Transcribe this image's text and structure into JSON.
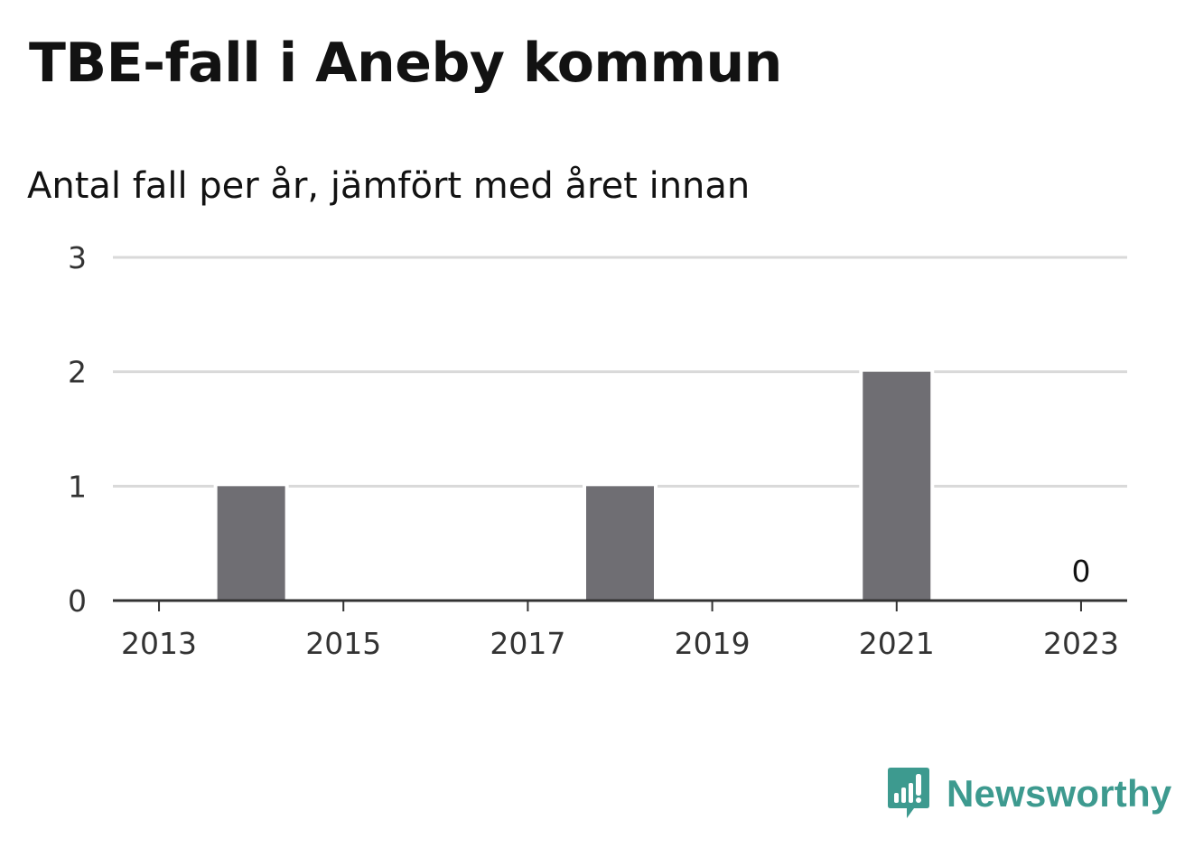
{
  "title": "TBE-fall i Aneby kommun",
  "subtitle": "Antal fall per år, jämfört med året innan",
  "brand": {
    "name": "Newsworthy",
    "color": "#3d9a8f",
    "icon": "newsworthy-bar-chart-speech-bubble-icon"
  },
  "colors": {
    "bar": "#6f6e73",
    "grid": "#d9d9d9",
    "axis": "#333333",
    "text": "#333333"
  },
  "chart_data": {
    "type": "bar",
    "categories": [
      "2013",
      "2014",
      "2015",
      "2016",
      "2017",
      "2018",
      "2019",
      "2020",
      "2021",
      "2022",
      "2023"
    ],
    "values": [
      0,
      1,
      0,
      0,
      0,
      1,
      0,
      0,
      2,
      0,
      0
    ],
    "x_tick_labels": [
      "2013",
      "2015",
      "2017",
      "2019",
      "2021",
      "2023"
    ],
    "y_ticks": [
      "0",
      "1",
      "2",
      "3"
    ],
    "ylim": [
      0,
      3
    ],
    "grid": true,
    "data_labels": [
      {
        "category": "2023",
        "text": "0"
      }
    ],
    "title": "TBE-fall i Aneby kommun",
    "subtitle": "Antal fall per år, jämfört med året innan",
    "xlabel": "",
    "ylabel": ""
  }
}
